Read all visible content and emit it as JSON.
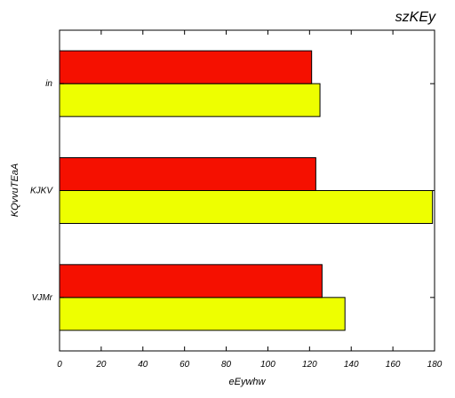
{
  "chart_data": {
    "type": "bar",
    "orientation": "horizontal",
    "title": "szKEy",
    "xlabel": "eEywhw",
    "ylabel": "KQvvuTEaA",
    "categories": [
      "VJMr",
      "KJKV",
      "in"
    ],
    "series": [
      {
        "values": [
          137,
          179,
          125
        ],
        "color": "#eeff00"
      },
      {
        "values": [
          126,
          123,
          121
        ],
        "color": "#f51000"
      }
    ],
    "xlim": [
      0,
      180
    ],
    "xticks": [
      0,
      20,
      40,
      60,
      80,
      100,
      120,
      140,
      160,
      180
    ],
    "grid": false,
    "legend": "none"
  }
}
